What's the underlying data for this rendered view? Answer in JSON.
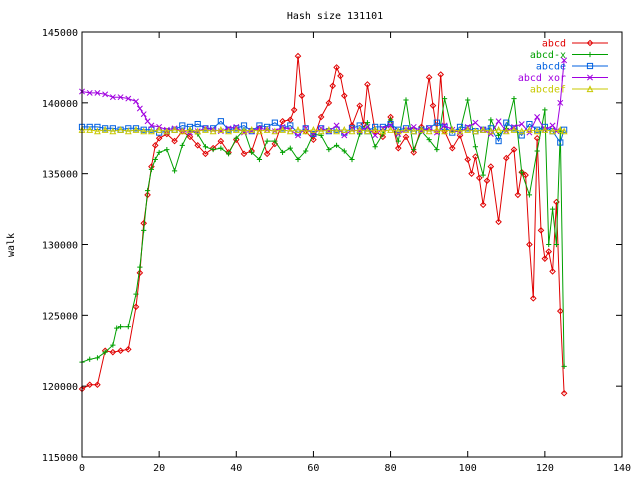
{
  "chart_data": {
    "type": "line",
    "title": "Hash size 131101",
    "xlabel": "",
    "ylabel": "walk",
    "xlim": [
      0,
      140
    ],
    "ylim": [
      115000,
      145000
    ],
    "xticks": [
      0,
      20,
      40,
      60,
      80,
      100,
      120,
      140
    ],
    "yticks": [
      115000,
      120000,
      125000,
      130000,
      135000,
      140000,
      145000
    ],
    "grid": false,
    "legend_position": "top-right",
    "series": [
      {
        "name": "abcd",
        "color": "#e00000",
        "marker": "diamond",
        "x": [
          0,
          2,
          4,
          6,
          8,
          10,
          12,
          14,
          15,
          16,
          17,
          18,
          19,
          20,
          22,
          24,
          26,
          28,
          30,
          32,
          34,
          36,
          38,
          40,
          42,
          44,
          46,
          48,
          50,
          52,
          54,
          55,
          56,
          57,
          58,
          60,
          62,
          64,
          65,
          66,
          67,
          68,
          70,
          72,
          73,
          74,
          76,
          78,
          80,
          82,
          84,
          86,
          88,
          90,
          91,
          92,
          93,
          94,
          96,
          98,
          100,
          101,
          102,
          103,
          104,
          105,
          106,
          108,
          110,
          112,
          113,
          114,
          115,
          116,
          117,
          118,
          119,
          120,
          121,
          122,
          123,
          124,
          125
        ],
        "y": [
          119800,
          120100,
          120100,
          122500,
          122400,
          122500,
          122600,
          125600,
          128000,
          131500,
          133500,
          135500,
          137000,
          137500,
          137800,
          137300,
          138000,
          137600,
          137000,
          136400,
          136800,
          137300,
          136500,
          137400,
          136400,
          136600,
          138200,
          136400,
          137100,
          138700,
          138800,
          139500,
          143300,
          140500,
          138000,
          137400,
          139000,
          140000,
          141200,
          142500,
          141900,
          140500,
          138400,
          139800,
          138500,
          141300,
          138000,
          137600,
          139000,
          136800,
          137600,
          136500,
          138300,
          141800,
          139800,
          138000,
          142000,
          138000,
          136800,
          137700,
          136000,
          135000,
          136200,
          134700,
          132800,
          134500,
          135500,
          131600,
          136100,
          136700,
          133500,
          135100,
          134900,
          130000,
          126200,
          137500,
          131000,
          129000,
          129500,
          128100,
          133000,
          125300,
          119500
        ]
      },
      {
        "name": "abcd-x",
        "color": "#00a000",
        "marker": "plus",
        "x": [
          0,
          2,
          4,
          6,
          8,
          9,
          10,
          12,
          14,
          15,
          16,
          17,
          18,
          19,
          20,
          22,
          24,
          26,
          28,
          30,
          32,
          34,
          36,
          38,
          40,
          42,
          44,
          46,
          48,
          50,
          52,
          54,
          56,
          58,
          60,
          62,
          64,
          66,
          68,
          70,
          72,
          74,
          76,
          78,
          80,
          82,
          84,
          86,
          88,
          90,
          92,
          94,
          96,
          98,
          100,
          102,
          104,
          106,
          108,
          110,
          112,
          114,
          116,
          118,
          120,
          121,
          122,
          123,
          124,
          125
        ],
        "y": [
          121700,
          121900,
          122000,
          122400,
          122900,
          124100,
          124200,
          124200,
          126500,
          128400,
          131000,
          133800,
          135300,
          136000,
          136500,
          136700,
          135200,
          137000,
          138100,
          137800,
          136900,
          136700,
          136800,
          136400,
          137500,
          138100,
          136500,
          136000,
          137300,
          137300,
          136500,
          136800,
          136000,
          136600,
          137800,
          137700,
          136700,
          137000,
          136600,
          136000,
          137800,
          138600,
          136900,
          137800,
          138800,
          137300,
          140200,
          136700,
          138000,
          137400,
          136700,
          140300,
          138000,
          138000,
          140200,
          136900,
          134900,
          138800,
          137700,
          138200,
          140300,
          135100,
          133500,
          136600,
          139500,
          130000,
          132500,
          130000,
          138000,
          121400
        ]
      },
      {
        "name": "abcde",
        "color": "#0060e0",
        "marker": "square",
        "x": [
          0,
          2,
          4,
          6,
          8,
          10,
          12,
          14,
          16,
          18,
          20,
          22,
          24,
          26,
          28,
          30,
          32,
          34,
          36,
          38,
          40,
          42,
          44,
          46,
          48,
          50,
          52,
          54,
          56,
          58,
          60,
          62,
          64,
          66,
          68,
          70,
          72,
          74,
          76,
          78,
          80,
          82,
          84,
          86,
          88,
          90,
          92,
          94,
          96,
          98,
          100,
          102,
          104,
          106,
          108,
          110,
          112,
          114,
          116,
          118,
          120,
          122,
          124,
          125
        ],
        "y": [
          138300,
          138300,
          138300,
          138200,
          138200,
          138100,
          138200,
          138200,
          138100,
          138100,
          137900,
          138000,
          138100,
          138400,
          138300,
          138500,
          138200,
          138200,
          138700,
          138100,
          138200,
          138400,
          138000,
          138400,
          138300,
          138600,
          138200,
          138400,
          137900,
          138200,
          137800,
          138200,
          138000,
          138100,
          137900,
          138200,
          138400,
          138000,
          138300,
          138300,
          138500,
          138100,
          138200,
          138000,
          138100,
          138200,
          138600,
          138300,
          137900,
          138300,
          138200,
          138000,
          138100,
          138200,
          137300,
          138600,
          138200,
          137700,
          138500,
          138100,
          138300,
          138000,
          137200,
          138100
        ]
      },
      {
        "name": "abcd xor",
        "color": "#a000e0",
        "marker": "cross",
        "x": [
          0,
          2,
          4,
          6,
          8,
          10,
          12,
          14,
          15,
          16,
          17,
          18,
          20,
          22,
          24,
          26,
          28,
          30,
          32,
          34,
          36,
          38,
          40,
          42,
          44,
          46,
          48,
          50,
          52,
          54,
          56,
          58,
          60,
          62,
          64,
          66,
          68,
          70,
          72,
          74,
          76,
          78,
          80,
          82,
          84,
          86,
          88,
          90,
          92,
          94,
          96,
          98,
          100,
          102,
          104,
          106,
          108,
          110,
          112,
          114,
          116,
          118,
          120,
          122,
          123,
          124,
          125
        ],
        "y": [
          140800,
          140700,
          140700,
          140600,
          140400,
          140400,
          140300,
          140100,
          139600,
          139200,
          138700,
          138400,
          138300,
          138100,
          138200,
          138000,
          137900,
          138000,
          138200,
          138100,
          138000,
          138200,
          138300,
          137900,
          138000,
          138200,
          138100,
          138000,
          138300,
          138100,
          137700,
          138200,
          137800,
          138200,
          138000,
          138400,
          137700,
          138100,
          138000,
          138300,
          137700,
          138200,
          138400,
          137800,
          138100,
          138300,
          138000,
          138200,
          137900,
          138400,
          138100,
          137900,
          138300,
          138600,
          138100,
          137800,
          138700,
          138000,
          138300,
          138500,
          137900,
          139000,
          138100,
          138400,
          138000,
          140000,
          143000
        ]
      },
      {
        "name": "abcdef",
        "color": "#c8c800",
        "marker": "triangle",
        "x": [
          0,
          2,
          4,
          6,
          8,
          10,
          12,
          14,
          16,
          18,
          20,
          22,
          24,
          26,
          28,
          30,
          32,
          34,
          36,
          38,
          40,
          42,
          44,
          46,
          48,
          50,
          52,
          54,
          56,
          58,
          60,
          62,
          64,
          66,
          68,
          70,
          72,
          74,
          76,
          78,
          80,
          82,
          84,
          86,
          88,
          90,
          92,
          94,
          96,
          98,
          100,
          102,
          104,
          106,
          108,
          110,
          112,
          114,
          116,
          118,
          120,
          122,
          124,
          125
        ],
        "y": [
          138100,
          138100,
          138000,
          138100,
          138000,
          138100,
          138000,
          138100,
          138000,
          138000,
          138100,
          138000,
          138100,
          138000,
          138100,
          138000,
          138100,
          138000,
          138100,
          138000,
          138100,
          138000,
          138100,
          138000,
          138100,
          138000,
          138100,
          138000,
          138100,
          138000,
          138100,
          138000,
          138100,
          138000,
          138100,
          138000,
          138100,
          138000,
          138100,
          138000,
          138100,
          138000,
          138100,
          138000,
          138100,
          138000,
          138100,
          138000,
          138100,
          138000,
          138100,
          138000,
          138100,
          138000,
          138100,
          138000,
          138100,
          138000,
          138100,
          138000,
          138100,
          138000,
          138100,
          138000
        ]
      }
    ]
  }
}
